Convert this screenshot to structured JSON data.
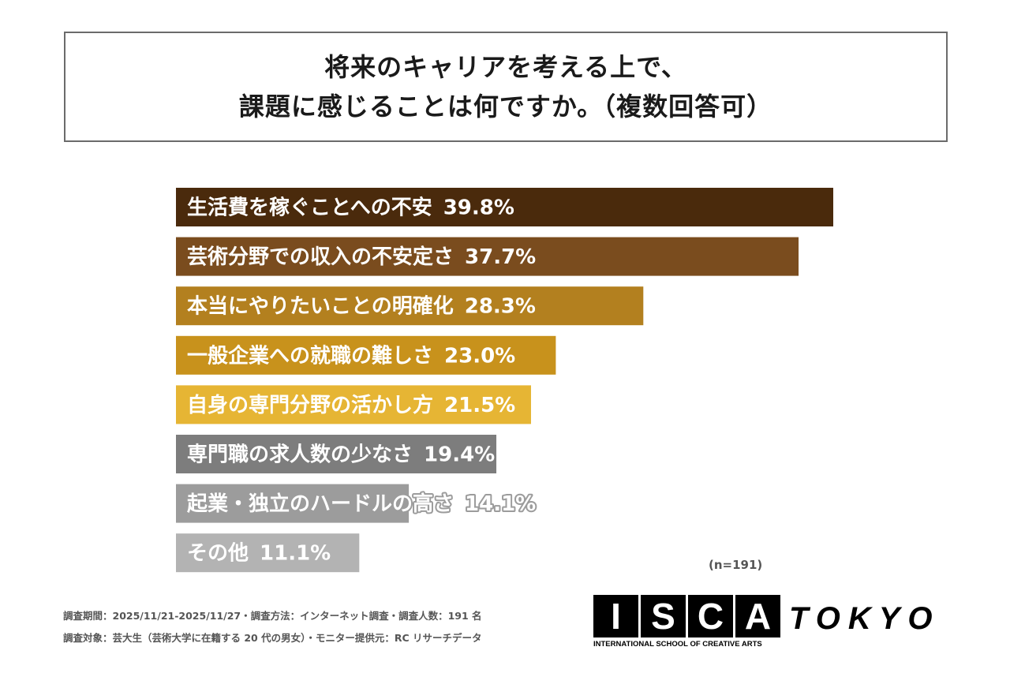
{
  "chart_data": {
    "type": "bar",
    "orientation": "horizontal",
    "title": [
      "将来のキャリアを考える上で、",
      "課題に感じることは何ですか。（複数回答可）"
    ],
    "categories": [
      "生活費を稼ぐことへの不安",
      "芸術分野での収入の不安定さ",
      "本当にやりたいことの明確化",
      "一般企業への就職の難しさ",
      "自身の専門分野の活かし方",
      "専門職の求人数の少なさ",
      "起業・独立のハードルの高さ",
      "その他"
    ],
    "values": [
      39.8,
      37.7,
      28.3,
      23.0,
      21.5,
      19.4,
      14.1,
      11.1
    ],
    "value_labels": [
      "39.8%",
      "37.7%",
      "28.3%",
      "23.0%",
      "21.5%",
      "19.4%",
      "14.1%",
      "11.1%"
    ],
    "colors": [
      "#4a2a0c",
      "#7a4c1e",
      "#b3801f",
      "#c8921c",
      "#e6b534",
      "#7d7d7d",
      "#9c9c9c",
      "#b3b3b3"
    ],
    "xlim": [
      0,
      39.8
    ],
    "grid": false,
    "sample_size": "(n=191)"
  },
  "footer": {
    "line1": "調査期間：2025/11/21-2025/11/27・調査方法：インターネット調査・調査人数：191 名",
    "line2": "調査対象：芸大生（芸術大学に在籍する 20 代の男女）・モニター提供元：RC リサーチデータ"
  },
  "logo": {
    "letters": [
      "I",
      "S",
      "C",
      "A"
    ],
    "tokyo": "TOKYO",
    "subtitle": "INTERNATIONAL SCHOOL OF CREATIVE ARTS"
  }
}
